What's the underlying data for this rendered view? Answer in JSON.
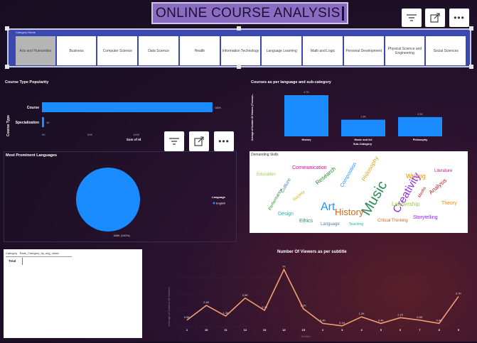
{
  "title": "ONLINE COURSE ANALYSIS",
  "toolbar": {
    "filter_icon": "filter-icon",
    "focus_icon": "focus-mode-icon",
    "more_icon": "more-options-icon"
  },
  "slicer": {
    "label": "Category Name",
    "items": [
      "Arts and Humanities",
      "Business",
      "Computer Science",
      "Data Science",
      "Health",
      "Information Technology",
      "Language Learning",
      "Math and Logic",
      "Personal Development",
      "Physical Science and Engineering",
      "Social Sciences"
    ],
    "selected_index": 0
  },
  "course_type": {
    "title": "Course Type Popularity",
    "ylabel": "Course Type",
    "xlabel": "Sum of Id",
    "bar_label_course": "Course",
    "bar_label_spec": "Specialization",
    "tick0": "0K",
    "tick1": "50K",
    "tick2": "100K",
    "tick3": "150K",
    "course_value": "186K",
    "spec_value": "1K"
  },
  "lang_subcat": {
    "title": "Courses as per language and sub-category",
    "ylabel": "Average of Number Of Viewers (Thousan...",
    "xlabel": "Sub-Category",
    "labels": [
      "History",
      "Music and Art",
      "Philosophy"
    ],
    "value_labels": [
      "4.7K",
      "1.9K",
      "2.2K"
    ]
  },
  "languages": {
    "title": "Most Prominent Languages",
    "legend_title": "Language",
    "legend_item": "English",
    "slice_label": "186K (100%)"
  },
  "skills": {
    "title": "Demanding Skills"
  },
  "table": {
    "headers": [
      "Category",
      "Rank_Category_by_avg_views"
    ],
    "total": "Total"
  },
  "viewers": {
    "title": "Number Of Viewers as per subtitle",
    "ylabel": "Average of Number Of Viewers",
    "xlabel": "Subtitle"
  },
  "chart_data": [
    {
      "type": "bar",
      "title": "Course Type Popularity",
      "categories": [
        "Course",
        "Specialization"
      ],
      "values": [
        186,
        1
      ],
      "xlabel": "Sum of Id",
      "ylabel": "Course Type",
      "xlim": [
        0,
        190
      ]
    },
    {
      "type": "bar",
      "title": "Courses as per language and sub-category",
      "categories": [
        "History",
        "Music and Art",
        "Philosophy"
      ],
      "values": [
        4.7,
        1.9,
        2.2
      ],
      "xlabel": "Sub-Category",
      "ylabel": "Average of Number Of Viewers (Thousan...",
      "ylim": [
        0,
        5
      ]
    },
    {
      "type": "pie",
      "title": "Most Prominent Languages",
      "labels": [
        "English"
      ],
      "values": [
        186
      ],
      "value_labels": [
        "186K (100%)"
      ]
    },
    {
      "type": "line",
      "title": "Number Of Viewers as per subtitle",
      "x": [
        "1",
        "10",
        "11",
        "12",
        "13",
        "14",
        "15",
        "2",
        "3",
        "4",
        "5",
        "6",
        "7",
        "8",
        "9"
      ],
      "values": [
        0.8,
        2.6,
        1.3,
        3.5,
        2.0,
        7.0,
        2.2,
        0.4,
        0.1,
        1.2,
        0.4,
        1.1,
        0.8,
        0.4,
        3.7
      ],
      "value_labels": [
        "0.8K",
        "2.6K",
        "1.3K",
        "3.5K",
        "2.0K",
        "7K",
        "2.2K",
        "0.4K",
        "0.1K",
        "1.2K",
        "0.4K",
        "1.1K",
        "0.8K",
        "0.4K",
        "3.7K"
      ],
      "xlabel": "Subtitle",
      "ylabel": "Average of Number Of Viewers",
      "ylim": [
        0,
        8
      ],
      "grid": true
    }
  ],
  "wordcloud": {
    "words": [
      "Music",
      "Creativity",
      "History",
      "Art",
      "Communication",
      "Research",
      "Writing",
      "Culture",
      "Leadership",
      "Analysis",
      "Design",
      "Philosophy",
      "Ethics",
      "Storytelling",
      "Critical Thinking",
      "Composition",
      "Literature",
      "Performance",
      "Theory",
      "Language",
      "Education",
      "Media",
      "Teaching",
      "Society"
    ],
    "colors": [
      "#2e8b57",
      "#8a2be2",
      "#d2691e",
      "#1e90ff",
      "#c71585",
      "#228b22",
      "#ff8c00",
      "#4682b4",
      "#9acd32",
      "#b22222",
      "#20b2aa",
      "#daa520"
    ]
  }
}
